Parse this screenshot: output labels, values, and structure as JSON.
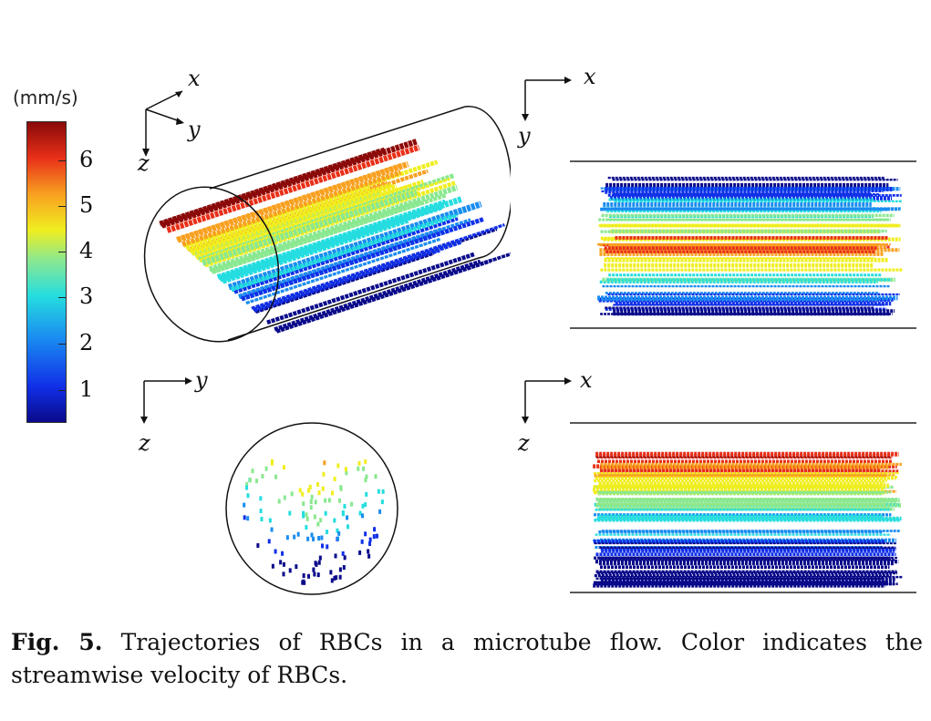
{
  "colorbar": {
    "unit": "(mm/s)",
    "ticks": [
      "6",
      "5",
      "4",
      "3",
      "2",
      "1"
    ],
    "colors": [
      "#0a0a8a",
      "#1030e8",
      "#1a8cf0",
      "#25dde0",
      "#8ae890",
      "#f0ee20",
      "#f8a020",
      "#e83018",
      "#8a0a0a"
    ]
  },
  "panels": {
    "iso": {
      "axes": [
        "x",
        "y",
        "z"
      ]
    },
    "top_view": {
      "axes": [
        "x",
        "y"
      ]
    },
    "cross_section": {
      "axes": [
        "y",
        "z"
      ]
    },
    "side_view": {
      "axes": [
        "x",
        "z"
      ]
    }
  },
  "caption": {
    "label": "Fig. 5.",
    "text": "Trajectories of RBCs in a microtube flow. Color indicates the streamwise velocity of RBCs."
  }
}
